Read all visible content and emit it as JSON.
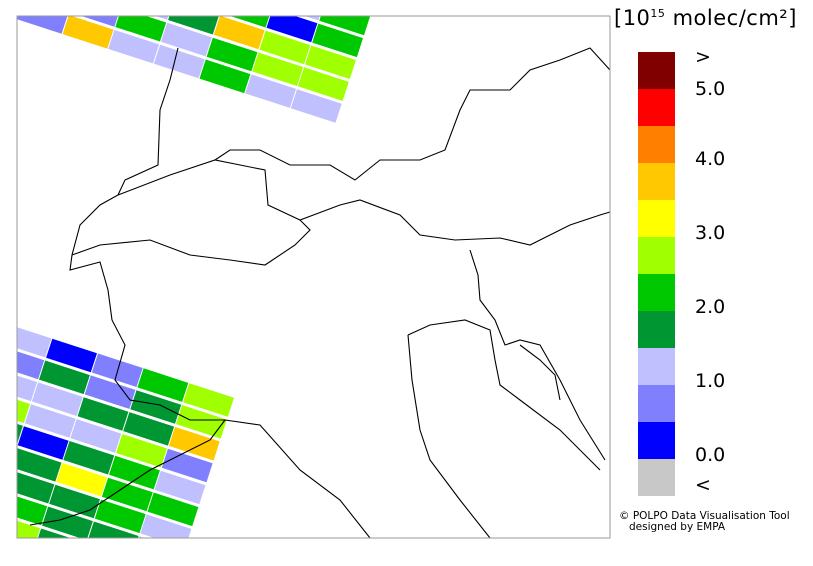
{
  "legend": {
    "unit_prefix": "[10",
    "unit_exp": "15",
    "unit_suffix": " molec/cm²]",
    "colors": [
      "#800000",
      "#ff0000",
      "#ff8000",
      "#ffc800",
      "#ffff00",
      "#a0ff00",
      "#00c800",
      "#009632",
      "#c0c0ff",
      "#8080ff",
      "#0000ff",
      "#c8c8c8"
    ],
    "labels": [
      ">",
      "5.0",
      "4.0",
      "3.0",
      "2.0",
      "1.0",
      "0.0",
      "<"
    ]
  },
  "credit": {
    "line1": "© POLPO Data Visualisation Tool",
    "line2": "designed by EMPA"
  },
  "swaths": {
    "top": [
      [
        6,
        7,
        8,
        6,
        11,
        0,
        5,
        9
      ],
      [
        9,
        8,
        3,
        7,
        0,
        6,
        8,
        6
      ],
      [
        8,
        9,
        9,
        11,
        8,
        6,
        10,
        6
      ],
      [
        9,
        3,
        8,
        8,
        7,
        3,
        5,
        5
      ],
      [
        8,
        8,
        9,
        6,
        8,
        6,
        5,
        5
      ],
      [
        7,
        9,
        3,
        8,
        8,
        6,
        8,
        8
      ]
    ],
    "bottom": [
      [
        8,
        8,
        10,
        9,
        6,
        5
      ],
      [
        6,
        9,
        7,
        9,
        7,
        5
      ],
      [
        7,
        8,
        8,
        7,
        7,
        3
      ],
      [
        9,
        5,
        8,
        8,
        5,
        9
      ],
      [
        7,
        7,
        10,
        7,
        6,
        8
      ],
      [
        8,
        8,
        7,
        4,
        6,
        6
      ],
      [
        7,
        9,
        7,
        7,
        6,
        8
      ],
      [
        6,
        7,
        6,
        7,
        7,
        8
      ],
      [
        5,
        6,
        5,
        7,
        6,
        8
      ],
      [
        6,
        7,
        5,
        6,
        7,
        8
      ]
    ]
  }
}
